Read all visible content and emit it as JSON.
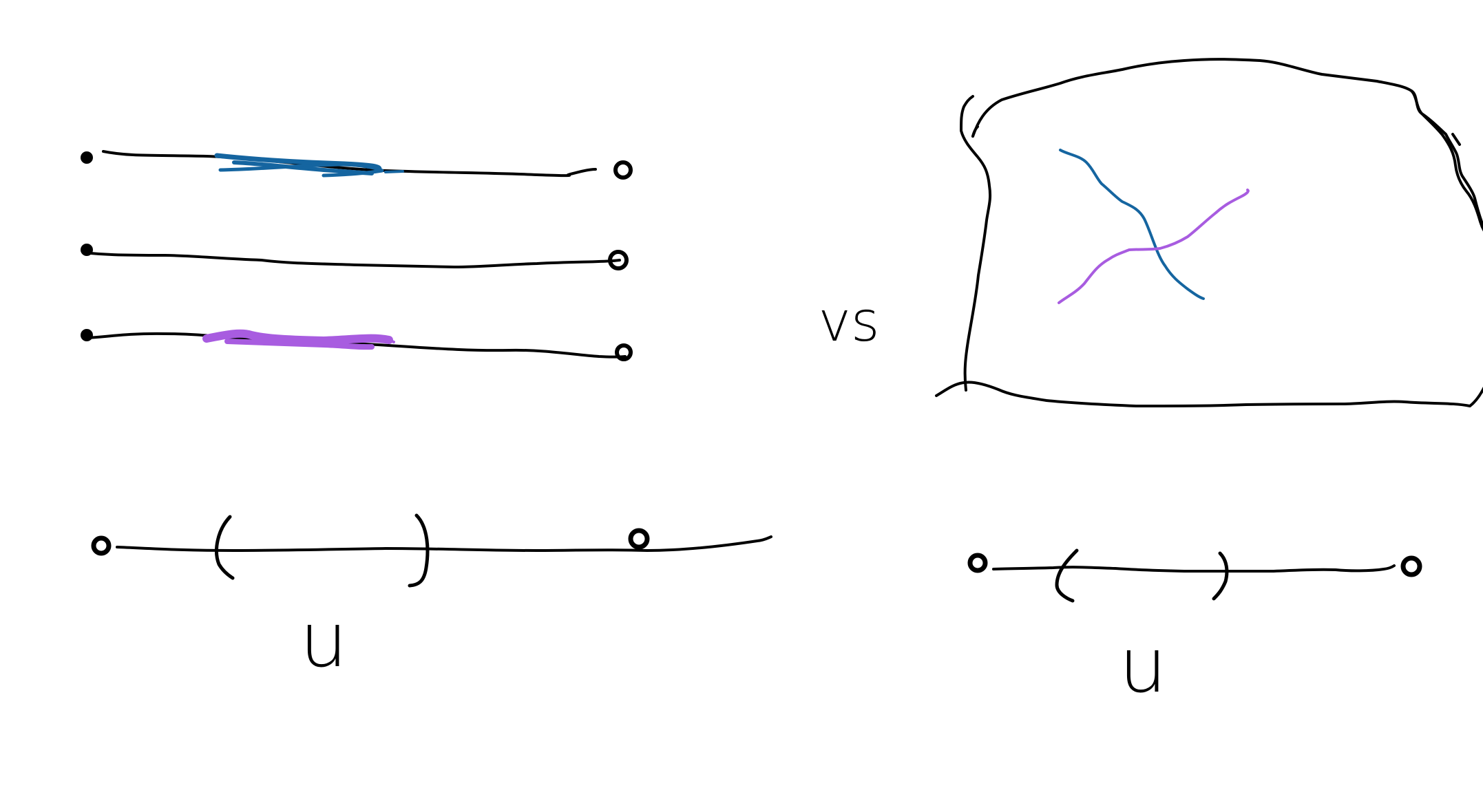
{
  "labels": {
    "vs": "vs",
    "left_open_set": "u",
    "right_open_set": "u"
  },
  "colors": {
    "ink": "#000000",
    "blue_path": "#1565a0",
    "purple_path": "#a85ce0",
    "background": "#ffffff"
  }
}
